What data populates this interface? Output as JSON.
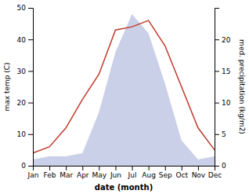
{
  "chart_data": {
    "type": "line",
    "xlabel": "date (month)",
    "ylabel": "max temp (C)",
    "y2label": "med. precipitation (kg/m2)",
    "categories": [
      "Jan",
      "Feb",
      "Mar",
      "Apr",
      "May",
      "Jun",
      "Jul",
      "Aug",
      "Sep",
      "Oct",
      "Nov",
      "Dec"
    ],
    "ylim": [
      0,
      50
    ],
    "yticks": [
      0,
      10,
      20,
      30,
      40,
      50
    ],
    "y2lim": [
      0,
      25
    ],
    "y2ticks": [
      0,
      5,
      10,
      15,
      20
    ],
    "grid": false,
    "series": [
      {
        "type": "area",
        "axis": "y2",
        "color": "#b8c0e0",
        "values": [
          1,
          1.5,
          1.5,
          2,
          8.5,
          18,
          24,
          21,
          13,
          4,
          1,
          1.5
        ]
      },
      {
        "type": "line",
        "color": "#c0392b",
        "values": [
          4,
          6,
          12,
          21,
          29,
          43,
          44,
          46,
          38,
          25,
          12,
          5
        ]
      }
    ]
  }
}
